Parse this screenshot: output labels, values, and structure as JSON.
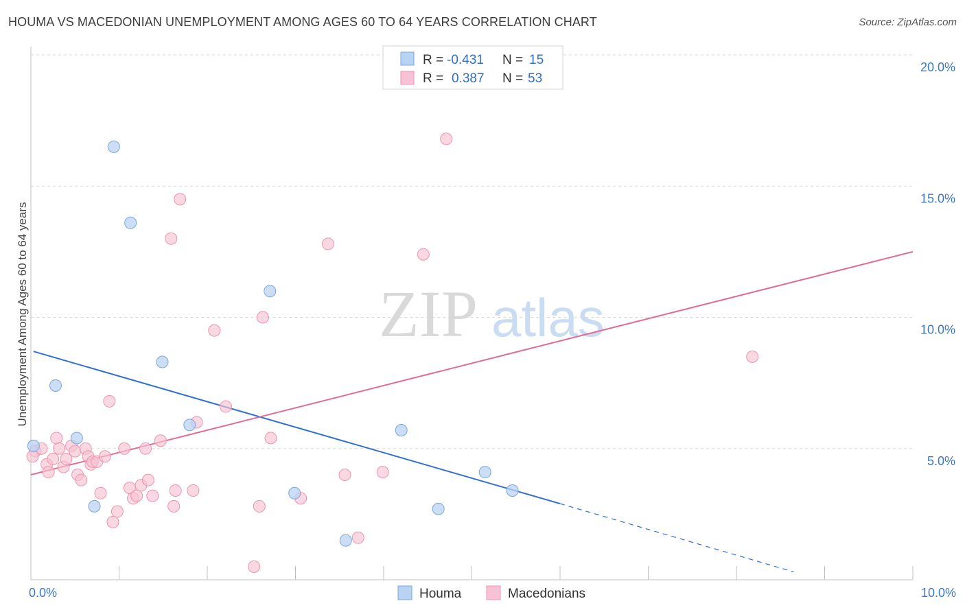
{
  "title": "HOUMA VS MACEDONIAN UNEMPLOYMENT AMONG AGES 60 TO 64 YEARS CORRELATION CHART",
  "source": "Source: ZipAtlas.com",
  "watermark": {
    "zip": "ZIP",
    "atlas": "atlas"
  },
  "colors": {
    "houma_fill": "#b9d3f2",
    "houma_stroke": "#7aa6db",
    "houma_line": "#2f6fd0",
    "mac_fill": "#f7c3d3",
    "mac_stroke": "#e995b0",
    "mac_line": "#e06c95",
    "axis_label": "#3b78c9",
    "grid": "#d9d9d9"
  },
  "legend": {
    "rows": [
      {
        "r_label": "R =",
        "r_value": "-0.431",
        "n_label": "N =",
        "n_value": "15"
      },
      {
        "r_label": "R =",
        "r_value": "0.387",
        "n_label": "N =",
        "n_value": "53"
      }
    ]
  },
  "bottom_legend": [
    "Houma",
    "Macedonians"
  ],
  "chart_data": {
    "type": "scatter",
    "xlabel": "",
    "ylabel": "Unemployment Among Ages 60 to 64 years",
    "xlim": [
      0,
      10
    ],
    "ylim": [
      0,
      20
    ],
    "x_tick_labels": [
      {
        "value": 0,
        "label": "0.0%"
      },
      {
        "value": 10,
        "label": "10.0%"
      }
    ],
    "y_tick_labels": [
      {
        "value": 5,
        "label": "5.0%"
      },
      {
        "value": 10,
        "label": "10.0%"
      },
      {
        "value": 15,
        "label": "15.0%"
      },
      {
        "value": 20,
        "label": "20.0%"
      }
    ],
    "grid": true,
    "legend_position": "top-center",
    "series": [
      {
        "name": "Houma",
        "points": [
          [
            0.03,
            5.1
          ],
          [
            0.28,
            7.4
          ],
          [
            0.52,
            5.4
          ],
          [
            0.72,
            2.8
          ],
          [
            0.94,
            16.5
          ],
          [
            1.13,
            13.6
          ],
          [
            1.49,
            8.3
          ],
          [
            1.8,
            5.9
          ],
          [
            2.71,
            11.0
          ],
          [
            2.99,
            3.3
          ],
          [
            3.57,
            1.5
          ],
          [
            4.2,
            5.7
          ],
          [
            4.62,
            2.7
          ],
          [
            5.15,
            4.1
          ],
          [
            5.46,
            3.4
          ]
        ],
        "trend": {
          "x1": 0.03,
          "y1": 8.7,
          "x2": 6.0,
          "y2": 2.9,
          "dash_to_x": 8.65,
          "dash_to_y": 0.3
        }
      },
      {
        "name": "Macedonians",
        "points": [
          [
            0.05,
            4.9
          ],
          [
            0.12,
            5.0
          ],
          [
            0.18,
            4.4
          ],
          [
            0.2,
            4.1
          ],
          [
            0.25,
            4.6
          ],
          [
            0.29,
            5.4
          ],
          [
            0.32,
            5.0
          ],
          [
            0.37,
            4.3
          ],
          [
            0.4,
            4.6
          ],
          [
            0.46,
            5.1
          ],
          [
            0.5,
            4.9
          ],
          [
            0.53,
            4.0
          ],
          [
            0.57,
            3.8
          ],
          [
            0.62,
            5.0
          ],
          [
            0.65,
            4.7
          ],
          [
            0.68,
            4.4
          ],
          [
            0.7,
            4.5
          ],
          [
            0.75,
            4.5
          ],
          [
            0.79,
            3.3
          ],
          [
            0.84,
            4.7
          ],
          [
            0.89,
            6.8
          ],
          [
            0.93,
            2.2
          ],
          [
            0.98,
            2.6
          ],
          [
            1.06,
            5.0
          ],
          [
            1.12,
            3.5
          ],
          [
            1.16,
            3.1
          ],
          [
            1.2,
            3.2
          ],
          [
            1.25,
            3.6
          ],
          [
            1.3,
            5.0
          ],
          [
            1.33,
            3.8
          ],
          [
            1.38,
            3.2
          ],
          [
            1.47,
            5.3
          ],
          [
            1.59,
            13.0
          ],
          [
            1.62,
            2.8
          ],
          [
            1.64,
            3.4
          ],
          [
            1.69,
            14.5
          ],
          [
            1.84,
            3.4
          ],
          [
            1.88,
            6.0
          ],
          [
            2.08,
            9.5
          ],
          [
            2.21,
            6.6
          ],
          [
            2.53,
            0.5
          ],
          [
            2.59,
            2.8
          ],
          [
            2.63,
            10.0
          ],
          [
            2.72,
            5.4
          ],
          [
            3.06,
            3.1
          ],
          [
            3.37,
            12.8
          ],
          [
            3.56,
            4.0
          ],
          [
            3.71,
            1.6
          ],
          [
            3.99,
            4.1
          ],
          [
            4.45,
            12.4
          ],
          [
            4.71,
            16.8
          ],
          [
            8.18,
            8.5
          ],
          [
            0.02,
            4.7
          ]
        ],
        "trend": {
          "x1": 0.0,
          "y1": 4.0,
          "x2": 10.0,
          "y2": 12.5
        }
      }
    ]
  }
}
